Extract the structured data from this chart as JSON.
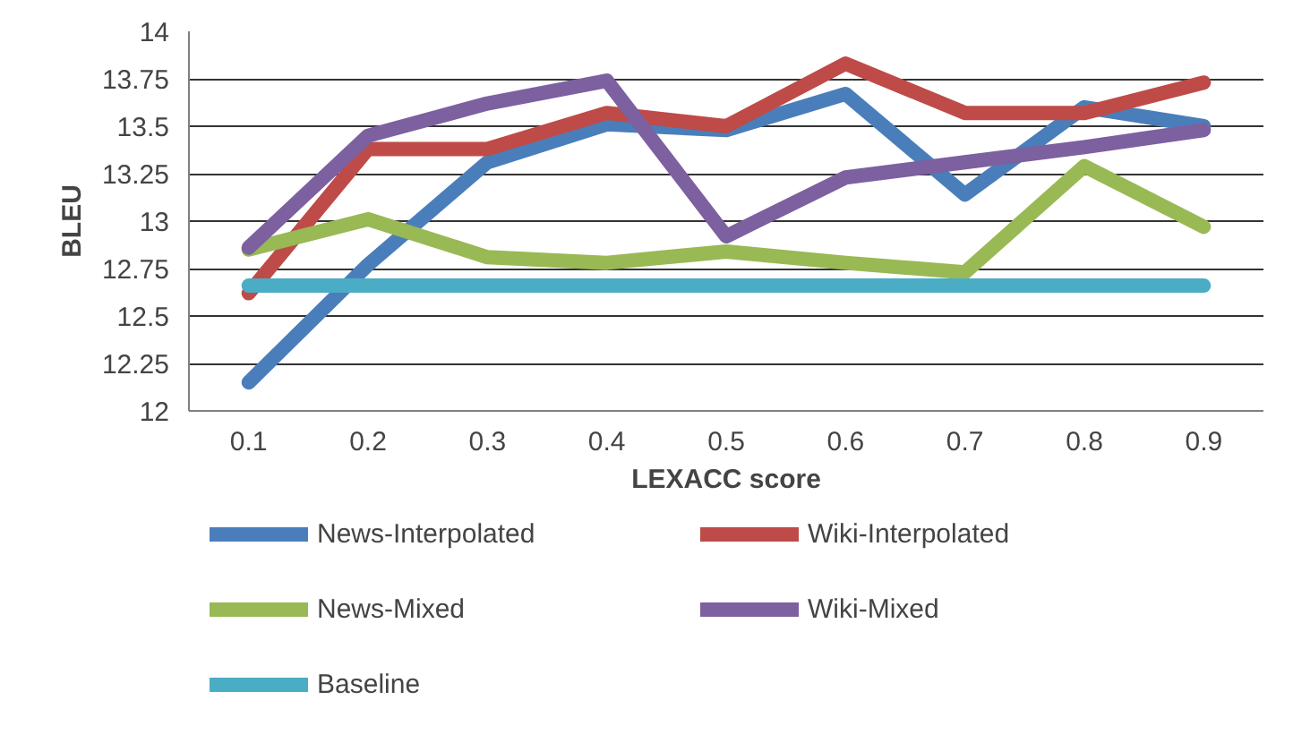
{
  "chart_data": {
    "type": "line",
    "xlabel": "LEXACC score",
    "ylabel": "BLEU",
    "categories": [
      "0.1",
      "0.2",
      "0.3",
      "0.4",
      "0.5",
      "0.6",
      "0.7",
      "0.8",
      "0.9"
    ],
    "series": [
      {
        "name": "News-Interpolated",
        "color": "#4a7ebb",
        "values": [
          12.15,
          12.77,
          13.31,
          13.51,
          13.48,
          13.67,
          13.14,
          13.6,
          13.5
        ]
      },
      {
        "name": "Wiki-Interpolated",
        "color": "#be4b48",
        "values": [
          12.62,
          13.38,
          13.38,
          13.57,
          13.5,
          13.83,
          13.57,
          13.57,
          13.73
        ]
      },
      {
        "name": "News-Mixed",
        "color": "#98b954",
        "values": [
          12.85,
          13.01,
          12.81,
          12.78,
          12.84,
          12.78,
          12.73,
          13.29,
          12.97
        ]
      },
      {
        "name": "Wiki-Mixed",
        "color": "#7d60a0",
        "values": [
          12.86,
          13.45,
          13.62,
          13.74,
          12.92,
          13.23,
          13.31,
          13.39,
          13.48
        ]
      },
      {
        "name": "Baseline",
        "color": "#4bacc6",
        "values": [
          12.66,
          12.66,
          12.66,
          12.66,
          12.66,
          12.66,
          12.66,
          12.66,
          12.66
        ]
      }
    ],
    "ylim": [
      12,
      14
    ],
    "yticks": [
      12,
      12.25,
      12.5,
      12.75,
      13,
      13.25,
      13.5,
      13.75,
      14
    ],
    "grid": "y",
    "legend": "bottom",
    "marker": "none",
    "line_style": "solid"
  }
}
